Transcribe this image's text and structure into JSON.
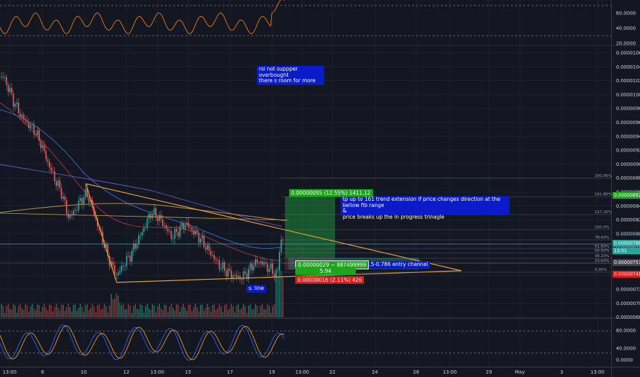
{
  "rsi_axis": [
    "60.0000",
    "40.0000",
    "20.0000"
  ],
  "price_axis": [
    "0.00001060",
    "0.00001040",
    "0.00001020",
    "0.00001000",
    "0.00000980",
    "0.00000960",
    "0.00000940",
    "0.00000920",
    "0.00000900",
    "0.00000880",
    "0.00000860",
    "0.00000840",
    "0.00000820",
    "0.00000800",
    "0.00000780",
    "0.00000760",
    "0.00000740",
    "0.00000720",
    "0.00000700",
    "0.00000680"
  ],
  "stoch_axis": [
    "80.0000",
    "40.0000",
    "0.0000"
  ],
  "time_axis": [
    "13:00",
    "8",
    "10",
    "12",
    "13:00",
    "15",
    "17",
    "19",
    "13:00",
    "22",
    "24",
    "26",
    "13:00",
    "29",
    "May",
    "3",
    "13:00"
  ],
  "price_tags": {
    "p1": "0.00000892",
    "p2": "0.00000786",
    "countdown": "13:51",
    "p3": "0.00000757",
    "p4": "0.00000741"
  },
  "fib_labels": [
    "200.00%",
    "161.80%",
    "127.20%",
    "100.0%",
    "78.60%",
    "61.80%",
    "50.00%",
    "38.20%",
    "23.60%",
    "0.00%"
  ],
  "annotations": {
    "rsi_note": "rsi not suppper overbought\nthere s room for more",
    "tp_note": "tp up to 161 trend extension if price changes direction at the bellow fib range\n&\nprice breaks up the in progress trinagle",
    "entry_note": "fib 0.5-0.786 entry channel",
    "s_line": "s. line"
  },
  "position_tool": {
    "target": "0.00000095 (12.55%) 1411.12",
    "center": "0.00000029 ~ 887499999",
    "ratio": "5.94",
    "stop": "0.00000016 (2.11%) 426"
  },
  "colors": {
    "background": "#131722",
    "up": "#26a69a",
    "down": "#ef5350",
    "rsi": "#f57c00",
    "triangle": "#f0a030",
    "note_bg": "#0a1cc9",
    "target_bg": "#1ca61c",
    "stop_bg": "#e01a1a"
  }
}
